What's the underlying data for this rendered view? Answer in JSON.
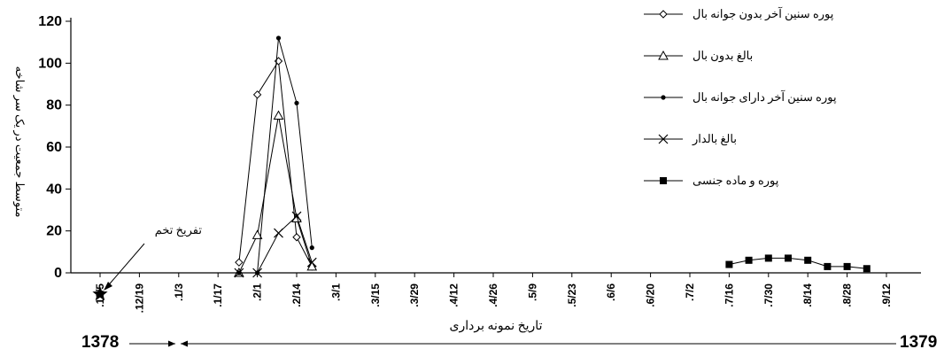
{
  "chart_data": {
    "type": "line",
    "title": "",
    "xlabel": "تاریخ نمونه برداری",
    "ylabel": "متوسط جمعیت در یک سر شاخه",
    "ylim": [
      0,
      120
    ],
    "yticks": [
      "0",
      "20",
      "40",
      "60",
      "80",
      "100",
      "120"
    ],
    "xticks": [
      ".12/5",
      ".12/19",
      ".1/3",
      ".1/17",
      ".2/1",
      ".2/14",
      ".3/1",
      ".3/15",
      ".3/29",
      ".4/12",
      ".4/26",
      ".5/9",
      ".5/23",
      ".6/6",
      ".6/20",
      ".7/2",
      ".7/16",
      ".7/30",
      ".8/14",
      ".8/28",
      ".9/12"
    ],
    "series": [
      {
        "name": "پوره سنین آخر بدون جوانه بال",
        "marker": "diamond",
        "points": [
          [
            ".1/25",
            5
          ],
          [
            ".2/1",
            85
          ],
          [
            ".2/8",
            101
          ],
          [
            ".2/14",
            17
          ],
          [
            ".2/21",
            3
          ]
        ]
      },
      {
        "name": "بالغ بدون بال",
        "marker": "triangle",
        "points": [
          [
            ".1/25",
            0
          ],
          [
            ".2/1",
            18
          ],
          [
            ".2/8",
            75
          ],
          [
            ".2/14",
            26
          ],
          [
            ".2/21",
            3
          ]
        ]
      },
      {
        "name": "پوره سنین آخر دارای جوانه بال",
        "marker": "dot",
        "points": [
          [
            ".1/25",
            0
          ],
          [
            ".2/1",
            0
          ],
          [
            ".2/8",
            112
          ],
          [
            ".2/14",
            81
          ],
          [
            ".2/21",
            12
          ]
        ]
      },
      {
        "name": "بالغ بالدار",
        "marker": "x",
        "points": [
          [
            ".1/25",
            0
          ],
          [
            ".2/1",
            0
          ],
          [
            ".2/8",
            19
          ],
          [
            ".2/14",
            27
          ],
          [
            ".2/21",
            5
          ]
        ]
      },
      {
        "name": "پوره و ماده جنسی",
        "marker": "square",
        "points": [
          [
            ".7/16",
            4
          ],
          [
            ".7/23",
            6
          ],
          [
            ".7/30",
            7
          ],
          [
            ".8/7",
            7
          ],
          [
            ".8/14",
            6
          ],
          [
            ".8/21",
            3
          ],
          [
            ".8/28",
            3
          ],
          [
            ".9/5",
            2
          ]
        ]
      }
    ],
    "annotations": [
      {
        "text": "تفریخ تخم",
        "target": [
          ".12/5",
          0
        ]
      }
    ],
    "legend_position": "top-right",
    "grid": false
  },
  "year_left": "1378",
  "year_right": "1379"
}
